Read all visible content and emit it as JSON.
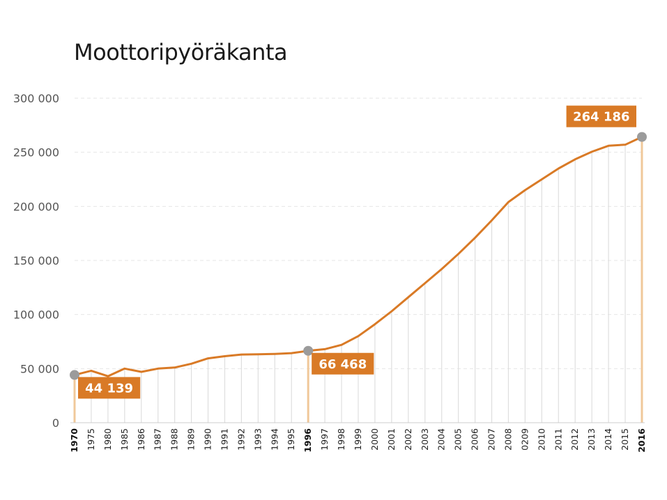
{
  "chart_data": {
    "type": "line",
    "title": "Moottoripyöräkanta",
    "xlabel": "",
    "ylabel": "",
    "categories": [
      "1970",
      "1975",
      "1980",
      "1985",
      "1986",
      "1987",
      "1988",
      "1989",
      "1990",
      "1991",
      "1992",
      "1993",
      "1994",
      "1995",
      "1996",
      "1997",
      "1998",
      "1999",
      "2000",
      "2001",
      "2002",
      "2003",
      "2004",
      "2005",
      "2006",
      "2007",
      "2008",
      "0209",
      "2010",
      "2011",
      "2012",
      "2013",
      "2014",
      "2015",
      "2016"
    ],
    "highlighted_categories": [
      "1970",
      "1996",
      "2016"
    ],
    "series": [
      {
        "values": [
          44139,
          48000,
          43000,
          50000,
          47000,
          50000,
          51000,
          54500,
          59500,
          61500,
          63000,
          63200,
          63600,
          64300,
          66468,
          68000,
          72000,
          80000,
          91000,
          103000,
          116000,
          129000,
          142000,
          156000,
          171000,
          187000,
          204000,
          215000,
          225000,
          235000,
          243500,
          250500,
          256000,
          257000,
          264186
        ]
      }
    ],
    "callouts": [
      {
        "category": "1970",
        "label": "44 139"
      },
      {
        "category": "1996",
        "label": "66 468"
      },
      {
        "category": "2016",
        "label": "264 186"
      }
    ],
    "ylim": [
      0,
      300000
    ],
    "yticks": [
      0,
      50000,
      100000,
      150000,
      200000,
      250000,
      300000
    ],
    "ytick_labels": [
      "0",
      "50 000",
      "100 000",
      "150 000",
      "200 000",
      "250 000",
      "300 000"
    ],
    "grid": true,
    "legend": "none",
    "colors": {
      "line": "#d97a26",
      "callout_bg": "#d97a26",
      "marker": "#9b9b9b",
      "drop_line": "#dedede",
      "drop_line_highlight": "#f0c89a",
      "grid": "#e6e6e6",
      "axis": "#cccccc"
    }
  }
}
